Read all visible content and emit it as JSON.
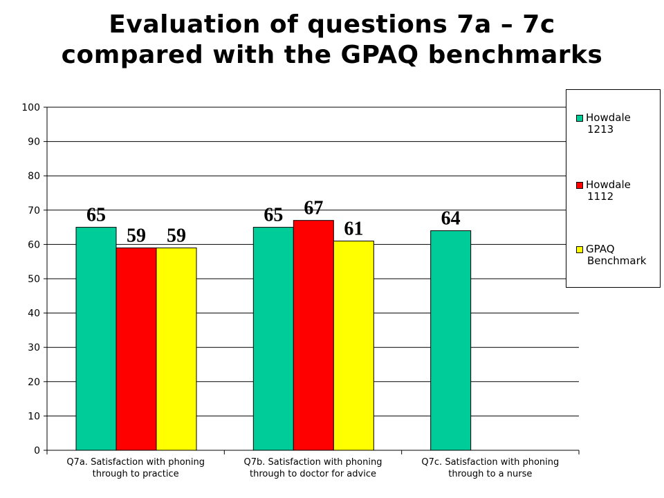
{
  "title": {
    "line1": "Evaluation of questions 7a – 7c",
    "line2": "compared with the GPAQ benchmarks"
  },
  "colors": {
    "howdale_1213": "#00CC99",
    "howdale_1112": "#FF0000",
    "gpaq_benchmark": "#FFFF00"
  },
  "chart_data": {
    "type": "bar",
    "categories": [
      [
        "Q7a. Satisfaction with phoning",
        "through to practice"
      ],
      [
        "Q7b. Satisfaction with phoning",
        "through to doctor for advice"
      ],
      [
        "Q7c. Satisfaction with phoning",
        "through to a nurse"
      ]
    ],
    "series": [
      {
        "name": "Howdale 1213",
        "legend_lines": [
          "Howdale",
          "1213"
        ],
        "color": "#00CC99",
        "values": [
          65,
          65,
          64
        ]
      },
      {
        "name": "Howdale 1112",
        "legend_lines": [
          "Howdale",
          "1112"
        ],
        "color": "#FF0000",
        "values": [
          59,
          67,
          null
        ]
      },
      {
        "name": "GPAQ Benchmark",
        "legend_lines": [
          "GPAQ",
          "Benchmark"
        ],
        "color": "#FFFF00",
        "values": [
          59,
          61,
          null
        ]
      }
    ],
    "ylim": [
      0,
      100
    ],
    "yticks": [
      0,
      10,
      20,
      30,
      40,
      50,
      60,
      70,
      80,
      90,
      100
    ],
    "grid": true,
    "legend_position": "right",
    "data_labels": true
  }
}
